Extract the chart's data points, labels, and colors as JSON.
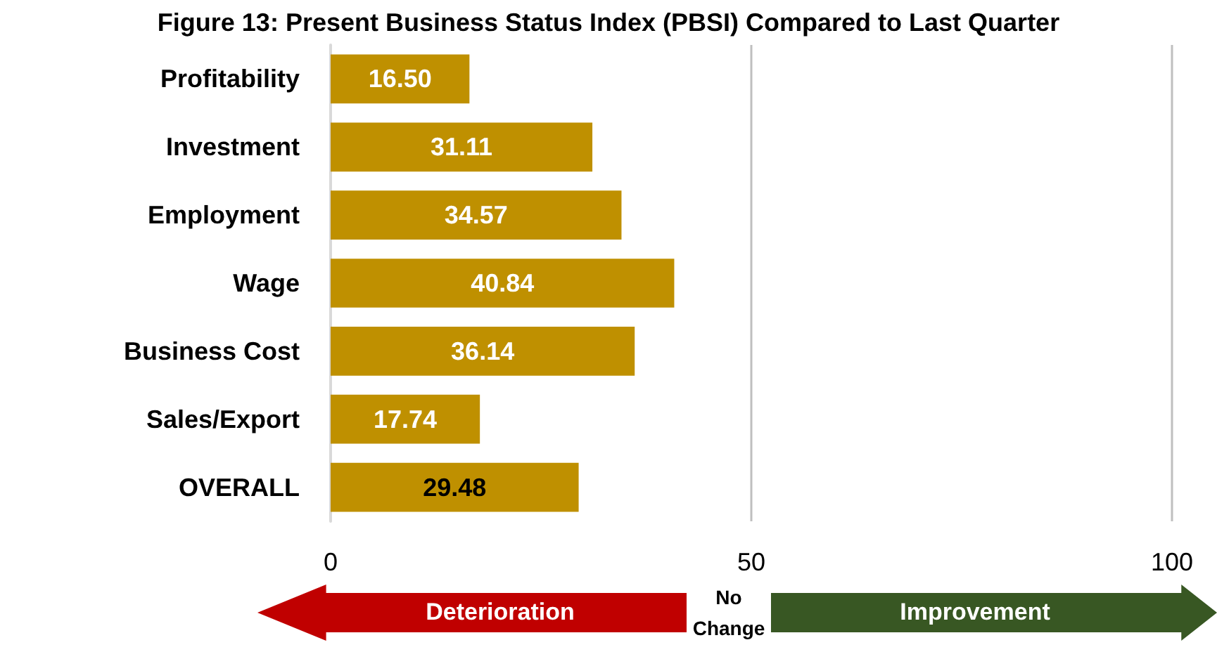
{
  "chart_data": {
    "type": "bar",
    "orientation": "horizontal",
    "title": "Figure 13: Present Business Status Index (PBSI) Compared to Last Quarter",
    "categories": [
      "Profitability",
      "Investment",
      "Employment",
      "Wage",
      "Business Cost",
      "Sales/Export",
      "OVERALL"
    ],
    "values": [
      16.5,
      31.11,
      34.57,
      40.84,
      36.14,
      17.74,
      29.48
    ],
    "value_labels": [
      "16.50",
      "31.11",
      "34.57",
      "40.84",
      "36.14",
      "17.74",
      "29.48"
    ],
    "color": "#bf9000",
    "xlim": [
      0,
      100
    ],
    "xticks": [
      0,
      50,
      100
    ],
    "grid": "x",
    "annotations": [
      "Deterioration",
      "No Change",
      "Improvement"
    ]
  }
}
